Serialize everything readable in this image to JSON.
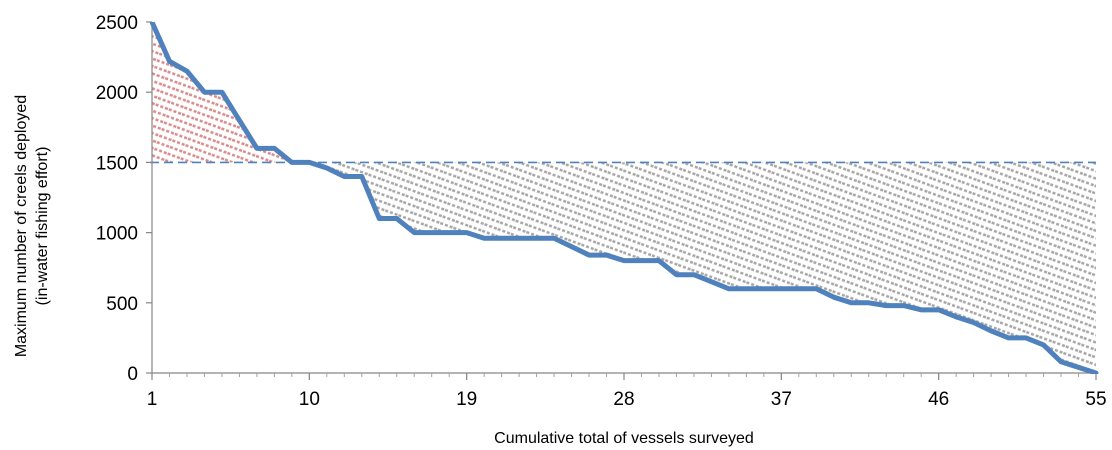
{
  "chart_data": {
    "type": "line",
    "title": "",
    "xlabel": "Cumulative total of vessels surveyed",
    "ylabel_lines": [
      "Maximum number of creels deployed",
      "(in-water fishing effort)"
    ],
    "xlim": [
      1,
      55
    ],
    "ylim": [
      0,
      2500
    ],
    "x_ticks": [
      1,
      10,
      19,
      28,
      37,
      46,
      55
    ],
    "y_ticks": [
      0,
      500,
      1000,
      1500,
      2000,
      2500
    ],
    "grid": false,
    "legend": "none",
    "reference_line": {
      "y": 1500,
      "style": "dashed",
      "color": "#4f81bd"
    },
    "series": [
      {
        "color": "#4f81bd",
        "x": [
          1,
          2,
          3,
          4,
          5,
          6,
          7,
          8,
          9,
          10,
          11,
          12,
          13,
          14,
          15,
          16,
          17,
          18,
          19,
          20,
          21,
          22,
          23,
          24,
          25,
          26,
          27,
          28,
          29,
          30,
          31,
          32,
          33,
          34,
          35,
          36,
          37,
          38,
          39,
          40,
          41,
          42,
          43,
          44,
          45,
          46,
          47,
          48,
          49,
          50,
          51,
          52,
          53,
          54,
          55
        ],
        "values": [
          2500,
          2220,
          2150,
          2000,
          2000,
          1800,
          1600,
          1600,
          1500,
          1500,
          1460,
          1400,
          1400,
          1100,
          1100,
          1000,
          1000,
          1000,
          1000,
          960,
          960,
          960,
          960,
          960,
          900,
          840,
          840,
          800,
          800,
          800,
          700,
          700,
          650,
          600,
          600,
          600,
          600,
          600,
          600,
          540,
          500,
          500,
          480,
          480,
          450,
          450,
          400,
          360,
          300,
          250,
          250,
          200,
          80,
          40,
          0
        ]
      }
    ],
    "shaded_regions": [
      {
        "name_hidden": "above",
        "color": "#d9534f",
        "description_hidden": true
      },
      {
        "name_hidden": "below",
        "color": "#8c8c8c",
        "description_hidden": true
      }
    ]
  }
}
